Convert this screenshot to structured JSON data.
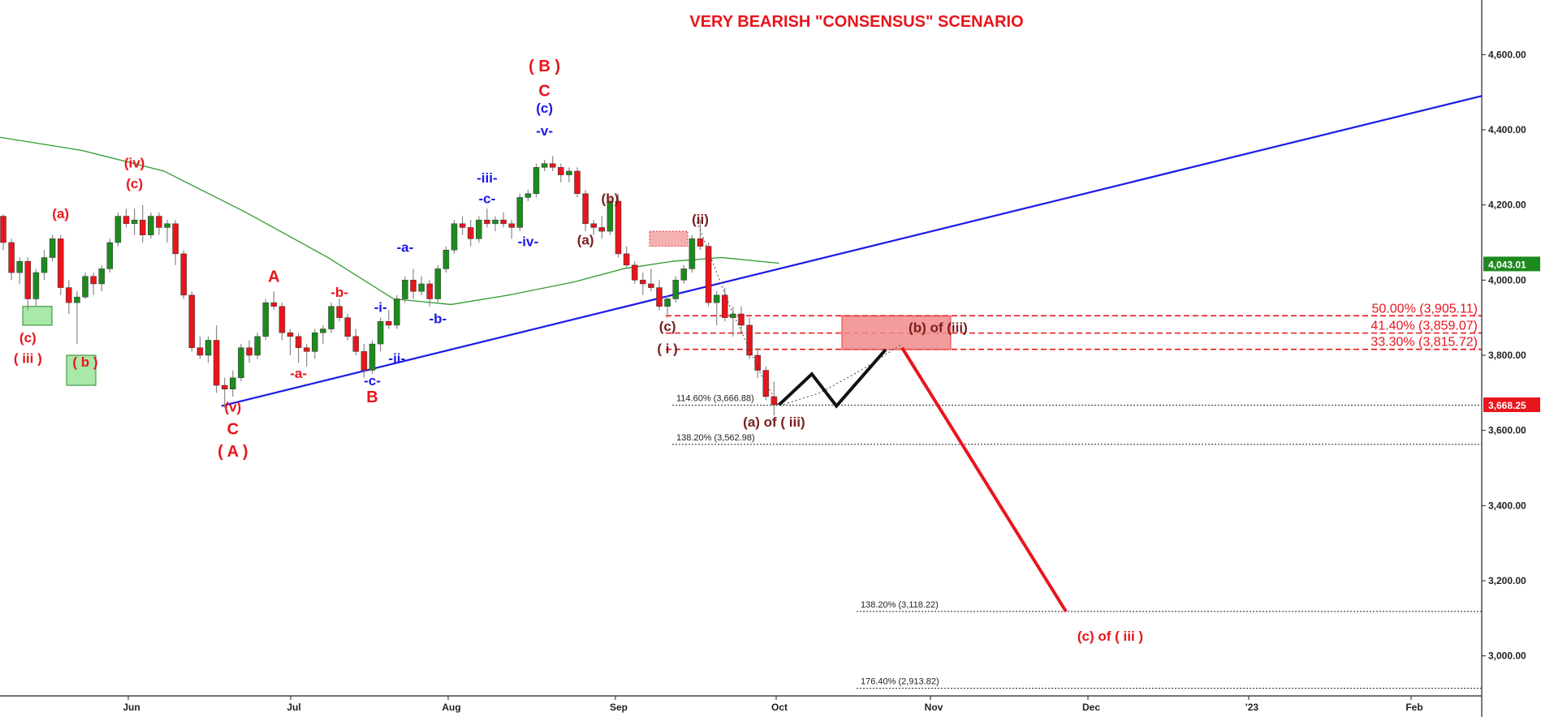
{
  "chart_data": {
    "type": "candlestick",
    "title": "VERY BEARISH \"CONSENSUS\" SCENARIO",
    "ylim": [
      2900,
      4700
    ],
    "y_ticks": [
      3000,
      3200,
      3400,
      3600,
      3800,
      4000,
      4200,
      4400,
      4600
    ],
    "y_tick_labels": [
      "3,000.00",
      "3,200.00",
      "3,400.00",
      "3,600.00",
      "3,800.00",
      "4,000.00",
      "4,200.00",
      "4,400.00",
      "4,600.00"
    ],
    "x_tick_labels": [
      "Jun",
      "Jul",
      "Aug",
      "Sep",
      "Oct",
      "Nov",
      "Dec",
      "'23",
      "Feb"
    ],
    "price_tags": [
      {
        "label": "4,043.01",
        "value": 4043.01,
        "color": "#1e8a1e"
      },
      {
        "label": "3,668.25",
        "value": 3668.25,
        "color": "#e8151b"
      }
    ],
    "fib_levels": [
      {
        "label": "50.00% (3,905.11)",
        "value": 3905.11,
        "color": "#e8151b"
      },
      {
        "label": "41.40% (3,859.07)",
        "value": 3859.07,
        "color": "#e8151b"
      },
      {
        "label": "33.30% (3,815.72)",
        "value": 3815.72,
        "color": "#e8151b"
      },
      {
        "label": "114.60% (3,666.88)",
        "value": 3666.88,
        "color": "#222222"
      },
      {
        "label": "138.20% (3,562.98)",
        "value": 3562.98,
        "color": "#222222"
      },
      {
        "label": "138.20% (3,118.22)",
        "value": 3118.22,
        "color": "#222222"
      },
      {
        "label": "176.40% (2,913.82)",
        "value": 2913.82,
        "color": "#222222"
      }
    ],
    "wave_labels": [
      {
        "text": "(a)",
        "color": "#e8151b",
        "day": 7,
        "price": 4165
      },
      {
        "text": "(c)",
        "color": "#e8151b",
        "day": 3,
        "price": 3835
      },
      {
        "text": "( iii )",
        "color": "#e8151b",
        "day": 3,
        "price": 3780
      },
      {
        "text": "( b )",
        "color": "#e8151b",
        "day": 10,
        "price": 3770
      },
      {
        "text": "(iv)",
        "color": "#e8151b",
        "day": 16,
        "price": 4300
      },
      {
        "text": "(c)",
        "color": "#e8151b",
        "day": 16,
        "price": 4245
      },
      {
        "text": "(v)",
        "color": "#e8151b",
        "day": 28,
        "price": 3650
      },
      {
        "text": "C",
        "color": "#e8151b",
        "day": 28,
        "price": 3590
      },
      {
        "text": "( A )",
        "color": "#e8151b",
        "day": 28,
        "price": 3530
      },
      {
        "text": "A",
        "color": "#e8151b",
        "day": 33,
        "price": 3995
      },
      {
        "text": "-b-",
        "color": "#e8151b",
        "day": 41,
        "price": 3955
      },
      {
        "text": "-a-",
        "color": "#e8151b",
        "day": 36,
        "price": 3740
      },
      {
        "text": "-c-",
        "color": "#1a1ae6",
        "day": 45,
        "price": 3720
      },
      {
        "text": "B",
        "color": "#e8151b",
        "day": 45,
        "price": 3675
      },
      {
        "text": "-i-",
        "color": "#1a1ae6",
        "day": 46,
        "price": 3915
      },
      {
        "text": "-ii-",
        "color": "#1a1ae6",
        "day": 48,
        "price": 3780
      },
      {
        "text": "-a-",
        "color": "#1a1ae6",
        "day": 49,
        "price": 4075
      },
      {
        "text": "-b-",
        "color": "#1a1ae6",
        "day": 53,
        "price": 3885
      },
      {
        "text": "-iii-",
        "color": "#1a1ae6",
        "day": 59,
        "price": 4260
      },
      {
        "text": "-c-",
        "color": "#1a1ae6",
        "day": 59,
        "price": 4205
      },
      {
        "text": "-iv-",
        "color": "#1a1ae6",
        "day": 64,
        "price": 4090
      },
      {
        "text": "( B )",
        "color": "#e8151b",
        "day": 66,
        "price": 4555
      },
      {
        "text": "C",
        "color": "#e8151b",
        "day": 66,
        "price": 4490
      },
      {
        "text": "(c)",
        "color": "#1a1ae6",
        "day": 66,
        "price": 4445
      },
      {
        "text": "-v-",
        "color": "#1a1ae6",
        "day": 66,
        "price": 4385
      },
      {
        "text": "(b)",
        "color": "#7b1c1c",
        "day": 74,
        "price": 4205
      },
      {
        "text": "(a)",
        "color": "#7b1c1c",
        "day": 71,
        "price": 4095
      },
      {
        "text": "(ii)",
        "color": "#7b1c1c",
        "day": 85,
        "price": 4150
      },
      {
        "text": "(c)",
        "color": "#7b1c1c",
        "day": 81,
        "price": 3865
      },
      {
        "text": "( i )",
        "color": "#7b1c1c",
        "day": 81,
        "price": 3805
      },
      {
        "text": "(a) of ( iii)",
        "color": "#7b1c1c",
        "day": 94,
        "price": 3610
      },
      {
        "text": "(b) of (iii)",
        "color": "#7b1c1c",
        "day": 114,
        "price": 3862
      },
      {
        "text": "(c) of ( iii )",
        "color": "#e8151b",
        "day": 135,
        "price": 3040
      }
    ],
    "trendline": {
      "color": "#1a1ae6",
      "from": {
        "day": 27,
        "price": 3665
      },
      "to": {
        "day": 187,
        "price": 4490
      }
    },
    "moving_average": {
      "color": "#2f9a2f",
      "points": [
        [
          0,
          4380
        ],
        [
          10,
          4345
        ],
        [
          20,
          4290
        ],
        [
          30,
          4180
        ],
        [
          40,
          4060
        ],
        [
          48,
          3950
        ],
        [
          55,
          3935
        ],
        [
          62,
          3960
        ],
        [
          70,
          3995
        ],
        [
          76,
          4030
        ],
        [
          82,
          4050
        ],
        [
          88,
          4060
        ],
        [
          95,
          4045
        ]
      ]
    },
    "projection": [
      {
        "color": "#111111",
        "points": [
          [
            95,
            3668
          ],
          [
            99,
            3750
          ],
          [
            102,
            3665
          ],
          [
            108,
            3815
          ]
        ]
      },
      {
        "color": "#e8151b",
        "points": [
          [
            110,
            3820
          ],
          [
            130,
            3118
          ]
        ]
      }
    ],
    "dotted_path": [
      [
        85,
        4155
      ],
      [
        89,
        3930
      ],
      [
        93,
        3740
      ],
      [
        95,
        3665
      ],
      [
        100,
        3700
      ],
      [
        105,
        3760
      ],
      [
        110,
        3830
      ]
    ],
    "candles": [
      [
        0,
        4170,
        4175,
        4080,
        4100
      ],
      [
        1,
        4100,
        4110,
        4000,
        4020
      ],
      [
        2,
        4020,
        4060,
        3990,
        4050
      ],
      [
        3,
        4050,
        4060,
        3920,
        3950
      ],
      [
        4,
        3950,
        4030,
        3930,
        4020
      ],
      [
        5,
        4020,
        4080,
        4000,
        4060
      ],
      [
        6,
        4060,
        4120,
        4050,
        4110
      ],
      [
        7,
        4110,
        4120,
        3960,
        3980
      ],
      [
        8,
        3980,
        4000,
        3910,
        3940
      ],
      [
        9,
        3940,
        3970,
        3830,
        3955
      ],
      [
        10,
        3955,
        4020,
        3950,
        4010
      ],
      [
        11,
        4010,
        4020,
        3960,
        3990
      ],
      [
        12,
        3990,
        4040,
        3970,
        4030
      ],
      [
        13,
        4030,
        4110,
        4020,
        4100
      ],
      [
        14,
        4100,
        4180,
        4090,
        4170
      ],
      [
        15,
        4170,
        4190,
        4140,
        4150
      ],
      [
        16,
        4150,
        4190,
        4120,
        4160
      ],
      [
        17,
        4160,
        4200,
        4100,
        4120
      ],
      [
        18,
        4120,
        4180,
        4110,
        4170
      ],
      [
        19,
        4170,
        4180,
        4120,
        4140
      ],
      [
        20,
        4140,
        4160,
        4100,
        4150
      ],
      [
        21,
        4150,
        4160,
        4040,
        4070
      ],
      [
        22,
        4070,
        4080,
        3950,
        3960
      ],
      [
        23,
        3960,
        3970,
        3810,
        3820
      ],
      [
        24,
        3820,
        3850,
        3790,
        3800
      ],
      [
        25,
        3800,
        3850,
        3780,
        3840
      ],
      [
        26,
        3840,
        3880,
        3700,
        3720
      ],
      [
        27,
        3720,
        3740,
        3660,
        3710
      ],
      [
        28,
        3710,
        3760,
        3690,
        3740
      ],
      [
        29,
        3740,
        3830,
        3730,
        3820
      ],
      [
        30,
        3820,
        3840,
        3780,
        3800
      ],
      [
        31,
        3800,
        3860,
        3790,
        3850
      ],
      [
        32,
        3850,
        3950,
        3840,
        3940
      ],
      [
        33,
        3940,
        3970,
        3920,
        3930
      ],
      [
        34,
        3930,
        3940,
        3840,
        3860
      ],
      [
        35,
        3860,
        3870,
        3800,
        3850
      ],
      [
        36,
        3850,
        3860,
        3780,
        3820
      ],
      [
        37,
        3820,
        3830,
        3770,
        3810
      ],
      [
        38,
        3810,
        3870,
        3790,
        3860
      ],
      [
        39,
        3860,
        3880,
        3830,
        3870
      ],
      [
        40,
        3870,
        3940,
        3860,
        3930
      ],
      [
        41,
        3930,
        3950,
        3890,
        3900
      ],
      [
        42,
        3900,
        3910,
        3840,
        3850
      ],
      [
        43,
        3850,
        3870,
        3800,
        3810
      ],
      [
        44,
        3810,
        3830,
        3740,
        3760
      ],
      [
        45,
        3760,
        3840,
        3750,
        3830
      ],
      [
        46,
        3830,
        3900,
        3810,
        3890
      ],
      [
        47,
        3890,
        3920,
        3870,
        3880
      ],
      [
        48,
        3880,
        3960,
        3870,
        3950
      ],
      [
        49,
        3950,
        4010,
        3940,
        4000
      ],
      [
        50,
        4000,
        4030,
        3950,
        3970
      ],
      [
        51,
        3970,
        4010,
        3960,
        3990
      ],
      [
        52,
        3990,
        4000,
        3930,
        3950
      ],
      [
        53,
        3950,
        4040,
        3940,
        4030
      ],
      [
        54,
        4030,
        4090,
        4020,
        4080
      ],
      [
        55,
        4080,
        4160,
        4070,
        4150
      ],
      [
        56,
        4150,
        4170,
        4120,
        4140
      ],
      [
        57,
        4140,
        4160,
        4090,
        4110
      ],
      [
        58,
        4110,
        4170,
        4100,
        4160
      ],
      [
        59,
        4160,
        4190,
        4140,
        4150
      ],
      [
        60,
        4150,
        4170,
        4130,
        4160
      ],
      [
        61,
        4160,
        4180,
        4140,
        4150
      ],
      [
        62,
        4150,
        4160,
        4110,
        4140
      ],
      [
        63,
        4140,
        4230,
        4130,
        4220
      ],
      [
        64,
        4220,
        4240,
        4210,
        4230
      ],
      [
        65,
        4230,
        4310,
        4220,
        4300
      ],
      [
        66,
        4300,
        4320,
        4290,
        4310
      ],
      [
        67,
        4310,
        4330,
        4290,
        4300
      ],
      [
        68,
        4300,
        4310,
        4260,
        4280
      ],
      [
        69,
        4280,
        4300,
        4260,
        4290
      ],
      [
        70,
        4290,
        4300,
        4220,
        4230
      ],
      [
        71,
        4230,
        4240,
        4130,
        4150
      ],
      [
        72,
        4150,
        4160,
        4120,
        4140
      ],
      [
        73,
        4140,
        4170,
        4110,
        4130
      ],
      [
        74,
        4130,
        4220,
        4120,
        4210
      ],
      [
        75,
        4210,
        4230,
        4060,
        4070
      ],
      [
        76,
        4070,
        4090,
        4030,
        4040
      ],
      [
        77,
        4040,
        4050,
        3990,
        4000
      ],
      [
        78,
        4000,
        4020,
        3960,
        3990
      ],
      [
        79,
        3990,
        4030,
        3970,
        3980
      ],
      [
        80,
        3980,
        4000,
        3920,
        3930
      ],
      [
        81,
        3930,
        3960,
        3900,
        3950
      ],
      [
        82,
        3950,
        4010,
        3940,
        4000
      ],
      [
        83,
        4000,
        4040,
        3990,
        4030
      ],
      [
        84,
        4030,
        4120,
        4020,
        4110
      ],
      [
        85,
        4110,
        4160,
        4080,
        4090
      ],
      [
        86,
        4090,
        4100,
        3930,
        3940
      ],
      [
        87,
        3940,
        3970,
        3880,
        3960
      ],
      [
        88,
        3960,
        3980,
        3890,
        3900
      ],
      [
        89,
        3900,
        3930,
        3850,
        3910
      ],
      [
        90,
        3910,
        3930,
        3860,
        3880
      ],
      [
        91,
        3880,
        3900,
        3790,
        3800
      ],
      [
        92,
        3800,
        3820,
        3740,
        3760
      ],
      [
        93,
        3760,
        3770,
        3680,
        3690
      ],
      [
        94,
        3690,
        3730,
        3640,
        3668
      ]
    ]
  }
}
